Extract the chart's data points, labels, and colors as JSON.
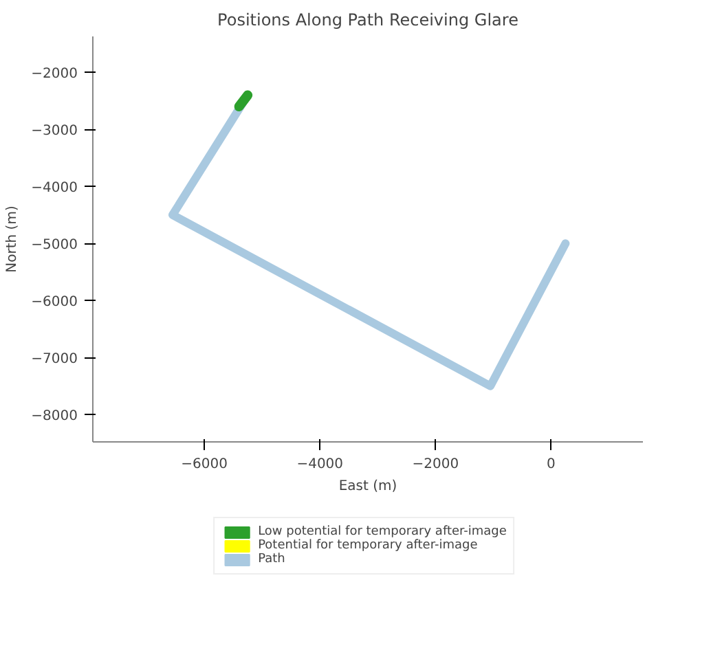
{
  "chart_data": {
    "type": "line",
    "title": "Positions Along Path Receiving Glare",
    "xlabel": "East (m)",
    "ylabel": "North (m)",
    "series": [
      {
        "name": "Low potential for temporary after-image",
        "color": "#2ca02c",
        "x": [
          -5400,
          -5250
        ],
        "values": [
          -2600,
          -2400
        ]
      },
      {
        "name": "Potential for temporary after-image",
        "color": "#ffff00"
      },
      {
        "name": "Path",
        "color": "#a9c9e0",
        "x": [
          -5250,
          -6550,
          -1050,
          250
        ],
        "values": [
          -2400,
          -4500,
          -7500,
          -5000
        ]
      }
    ],
    "xlim": [
      -7930,
      1590
    ],
    "ylim": [
      -8480,
      -1370
    ],
    "xticks": [
      -6000,
      -4000,
      -2000,
      0
    ],
    "yticks": [
      -8000,
      -7000,
      -6000,
      -5000,
      -4000,
      -3000,
      -2000
    ],
    "grid": false,
    "legend": "bottom",
    "line_style": "solid"
  }
}
